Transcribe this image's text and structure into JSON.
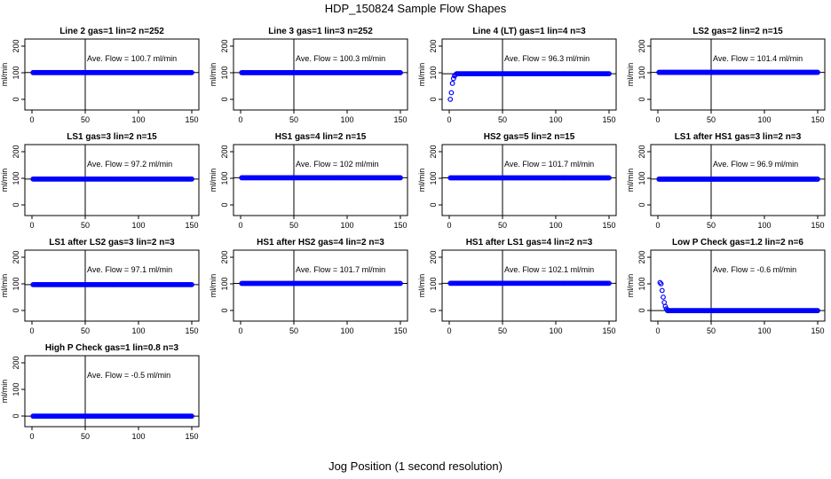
{
  "figure": {
    "title": "HDP_150824  Sample Flow Shapes",
    "xlabel": "Jog Position (1 second resolution)",
    "ylabel": "ml/min",
    "annotation_prefix": "Ave. Flow =",
    "annotation_unit": "ml/min"
  },
  "chart_data": [
    {
      "type": "scatter",
      "title": "Line 2 gas=1 lin=2 n=252",
      "ave_flow": "100.7",
      "shape": "flat",
      "level": 100.7,
      "xlim": [
        0,
        150
      ],
      "ylim": [
        0,
        200
      ],
      "xticks": [
        0,
        50,
        100,
        150
      ],
      "yticks": [
        0,
        100,
        200
      ],
      "vline": 50,
      "point_color": "#0000ff"
    },
    {
      "type": "scatter",
      "title": "Line 3 gas=1 lin=3 n=252",
      "ave_flow": "100.3",
      "shape": "flat",
      "level": 100.3,
      "xlim": [
        0,
        150
      ],
      "ylim": [
        0,
        200
      ],
      "xticks": [
        0,
        50,
        100,
        150
      ],
      "yticks": [
        0,
        100,
        200
      ],
      "vline": 50,
      "point_color": "#0000ff"
    },
    {
      "type": "scatter",
      "title": "Line 4 (LT) gas=1 lin=4 n=3",
      "ave_flow": "96.3",
      "shape": "rise",
      "level": 96.3,
      "start_points": [
        [
          1,
          0
        ],
        [
          2,
          25
        ],
        [
          3,
          60
        ],
        [
          4,
          78
        ],
        [
          5,
          88
        ],
        [
          6,
          93
        ]
      ],
      "xlim": [
        0,
        150
      ],
      "ylim": [
        0,
        200
      ],
      "xticks": [
        0,
        50,
        100,
        150
      ],
      "yticks": [
        0,
        100,
        200
      ],
      "vline": 50,
      "point_color": "#0000ff"
    },
    {
      "type": "scatter",
      "title": "LS2 gas=2 lin=2 n=15",
      "ave_flow": "101.4",
      "shape": "flat",
      "level": 101.4,
      "xlim": [
        0,
        150
      ],
      "ylim": [
        0,
        200
      ],
      "xticks": [
        0,
        50,
        100,
        150
      ],
      "yticks": [
        0,
        100,
        200
      ],
      "vline": 50,
      "point_color": "#0000ff"
    },
    {
      "type": "scatter",
      "title": "LS1 gas=3 lin=2 n=15",
      "ave_flow": "97.2",
      "shape": "flat",
      "level": 97.2,
      "xlim": [
        0,
        150
      ],
      "ylim": [
        0,
        200
      ],
      "xticks": [
        0,
        50,
        100,
        150
      ],
      "yticks": [
        0,
        100,
        200
      ],
      "vline": 50,
      "point_color": "#0000ff"
    },
    {
      "type": "scatter",
      "title": "HS1 gas=4 lin=2 n=15",
      "ave_flow": "102",
      "shape": "flat",
      "level": 102,
      "xlim": [
        0,
        150
      ],
      "ylim": [
        0,
        200
      ],
      "xticks": [
        0,
        50,
        100,
        150
      ],
      "yticks": [
        0,
        100,
        200
      ],
      "vline": 50,
      "point_color": "#0000ff"
    },
    {
      "type": "scatter",
      "title": "HS2 gas=5 lin=2 n=15",
      "ave_flow": "101.7",
      "shape": "flat",
      "level": 101.7,
      "xlim": [
        0,
        150
      ],
      "ylim": [
        0,
        200
      ],
      "xticks": [
        0,
        50,
        100,
        150
      ],
      "yticks": [
        0,
        100,
        200
      ],
      "vline": 50,
      "point_color": "#0000ff"
    },
    {
      "type": "scatter",
      "title": "LS1 after HS1 gas=3 lin=2 n=3",
      "ave_flow": "96.9",
      "shape": "flat",
      "level": 96.9,
      "xlim": [
        0,
        150
      ],
      "ylim": [
        0,
        200
      ],
      "xticks": [
        0,
        50,
        100,
        150
      ],
      "yticks": [
        0,
        100,
        200
      ],
      "vline": 50,
      "point_color": "#0000ff"
    },
    {
      "type": "scatter",
      "title": "LS1 after LS2 gas=3 lin=2 n=3",
      "ave_flow": "97.1",
      "shape": "flat",
      "level": 97.1,
      "xlim": [
        0,
        150
      ],
      "ylim": [
        0,
        200
      ],
      "xticks": [
        0,
        50,
        100,
        150
      ],
      "yticks": [
        0,
        100,
        200
      ],
      "vline": 50,
      "point_color": "#0000ff"
    },
    {
      "type": "scatter",
      "title": "HS1 after HS2 gas=4 lin=2 n=3",
      "ave_flow": "101.7",
      "shape": "flat",
      "level": 101.7,
      "xlim": [
        0,
        150
      ],
      "ylim": [
        0,
        200
      ],
      "xticks": [
        0,
        50,
        100,
        150
      ],
      "yticks": [
        0,
        100,
        200
      ],
      "vline": 50,
      "point_color": "#0000ff"
    },
    {
      "type": "scatter",
      "title": "HS1 after LS1 gas=4 lin=2 n=3",
      "ave_flow": "102.1",
      "shape": "flat",
      "level": 102.1,
      "xlim": [
        0,
        150
      ],
      "ylim": [
        0,
        200
      ],
      "xticks": [
        0,
        50,
        100,
        150
      ],
      "yticks": [
        0,
        100,
        200
      ],
      "vline": 50,
      "point_color": "#0000ff"
    },
    {
      "type": "scatter",
      "title": "Low P Check gas=1.2 lin=2 n=6",
      "ave_flow": "-0.6",
      "shape": "decay",
      "level": -0.6,
      "start_points": [
        [
          2,
          105
        ],
        [
          3,
          100
        ],
        [
          4,
          75
        ],
        [
          5,
          50
        ],
        [
          6,
          30
        ],
        [
          7,
          15
        ],
        [
          8,
          6
        ]
      ],
      "xlim": [
        0,
        150
      ],
      "ylim": [
        0,
        200
      ],
      "xticks": [
        0,
        50,
        100,
        150
      ],
      "yticks": [
        0,
        100,
        200
      ],
      "vline": 50,
      "point_color": "#0000ff"
    },
    {
      "type": "scatter",
      "title": "High P Check gas=1 lin=0.8 n=3",
      "ave_flow": "-0.5",
      "shape": "flat",
      "level": -0.5,
      "xlim": [
        0,
        150
      ],
      "ylim": [
        0,
        200
      ],
      "xticks": [
        0,
        50,
        100,
        150
      ],
      "yticks": [
        0,
        100,
        200
      ],
      "vline": 50,
      "point_color": "#0000ff"
    }
  ]
}
